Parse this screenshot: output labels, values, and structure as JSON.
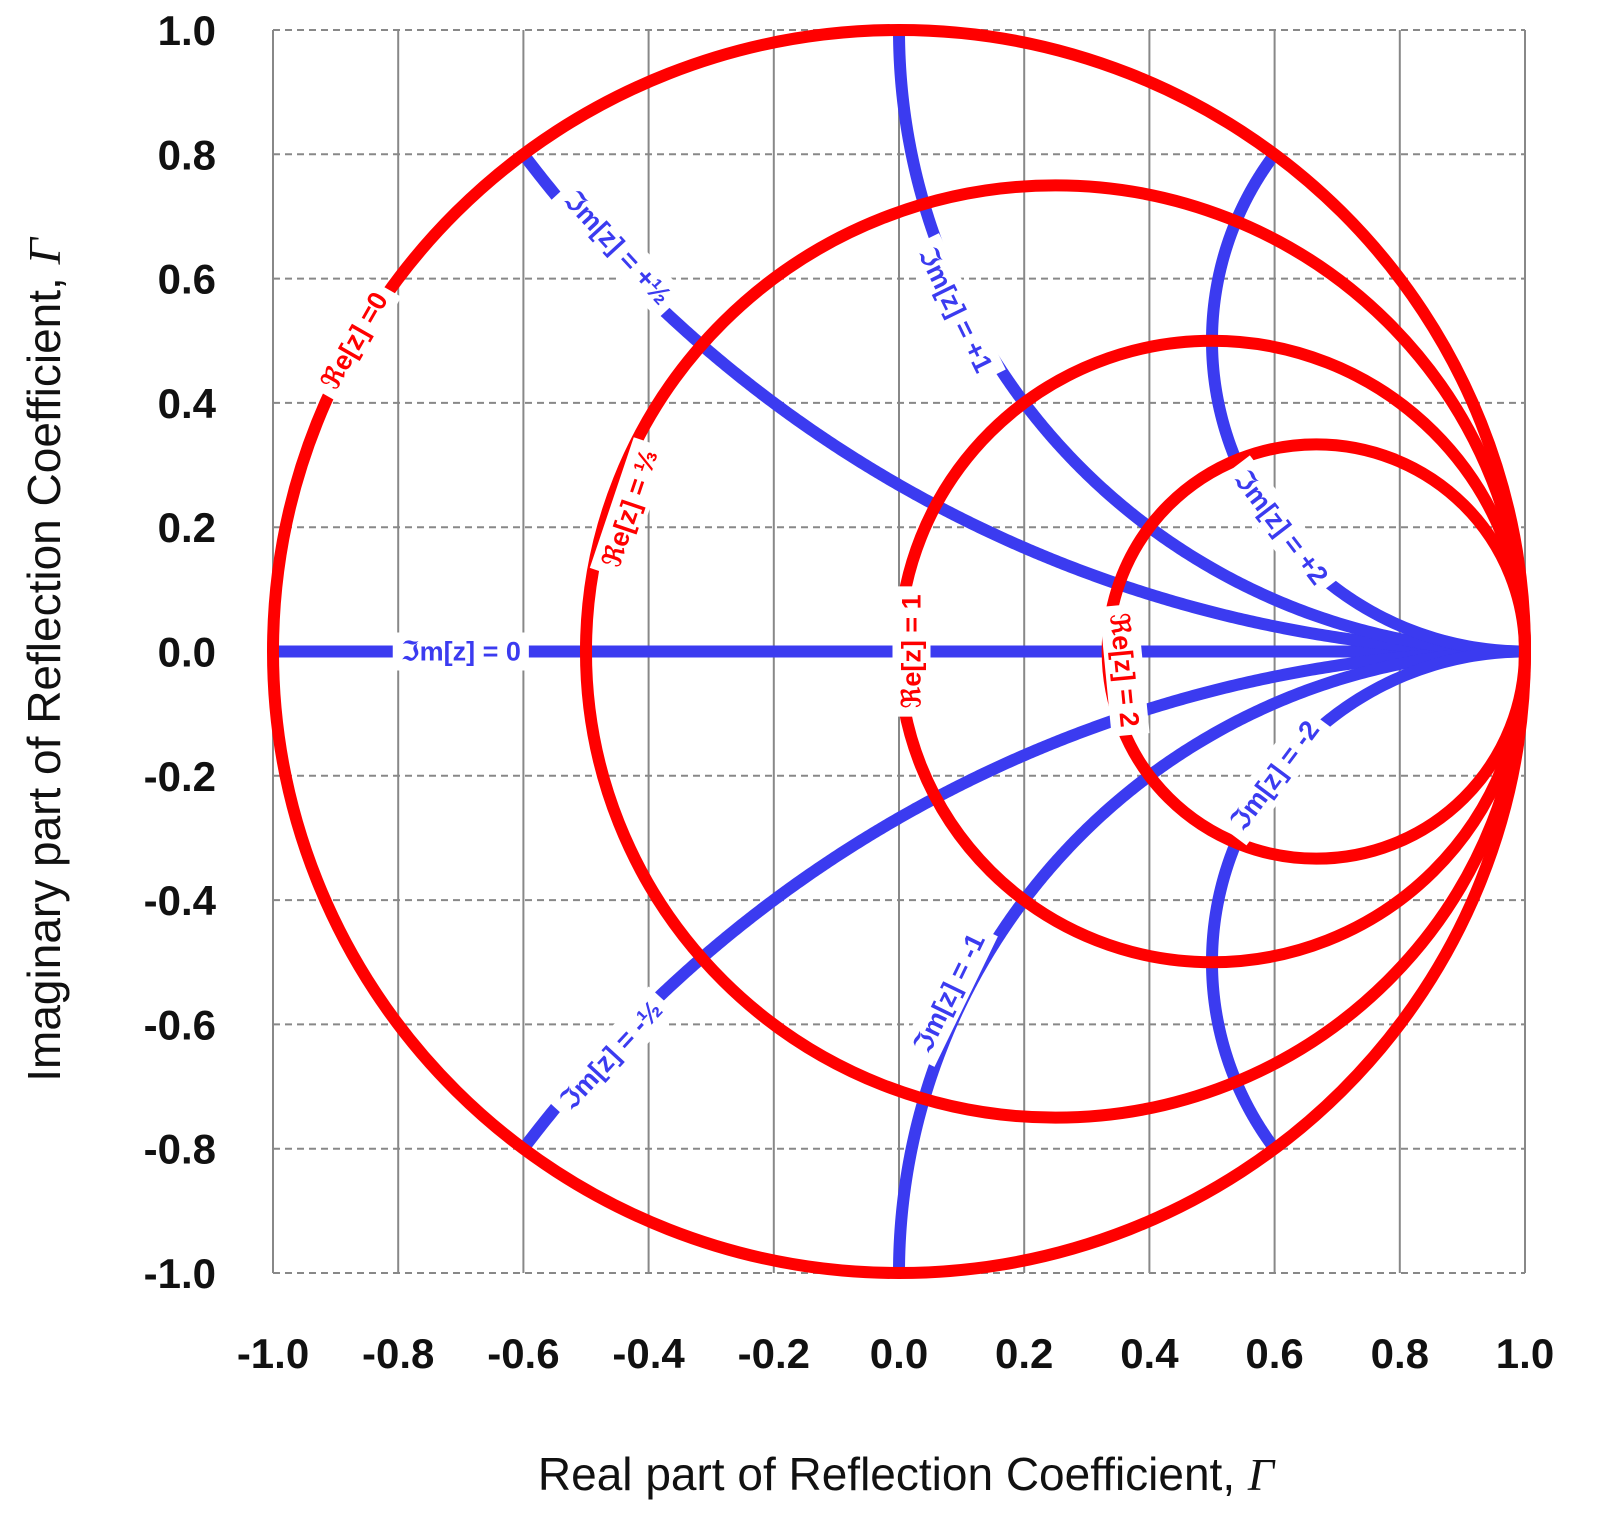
{
  "chart_data": {
    "type": "line",
    "title": "",
    "xlabel": "Real part of Reflection Coefficient, Γ",
    "ylabel": "Imaginary part of Reflection Coefficient, Γ",
    "axis_label_text": "part of Reflection Coefficient,",
    "xlabel_prefix": "Real",
    "ylabel_prefix": "Imaginary",
    "axis_symbol": "Γ",
    "xlim": [
      -1.0,
      1.0
    ],
    "ylim": [
      -1.0,
      1.0
    ],
    "xticks": [
      "-1.0",
      "-0.8",
      "-0.6",
      "-0.4",
      "-0.2",
      "0.0",
      "0.2",
      "0.4",
      "0.6",
      "0.8",
      "1.0"
    ],
    "yticks": [
      "-1.0",
      "-0.8",
      "-0.6",
      "-0.4",
      "-0.2",
      "0.0",
      "0.2",
      "0.4",
      "0.6",
      "0.8",
      "1.0"
    ],
    "grid": true,
    "colors": {
      "resistance": "#ff0000",
      "reactance": "#3b3bf0",
      "grid": "#888888"
    },
    "series": [
      {
        "name": "ℜe[z] =0",
        "kind": "constant-resistance",
        "r": 0,
        "label_anchor": [
          -0.87,
          0.5
        ]
      },
      {
        "name": "ℜe[z] = ⅓",
        "kind": "constant-resistance",
        "r": 0.3333,
        "label_anchor": [
          -0.43,
          0.23
        ]
      },
      {
        "name": "ℜe[z] = 1",
        "kind": "constant-resistance",
        "r": 1,
        "label_anchor": [
          0.02,
          0.0
        ]
      },
      {
        "name": "ℜe[z] = 2",
        "kind": "constant-resistance",
        "r": 2,
        "label_anchor": [
          0.36,
          -0.03
        ]
      },
      {
        "name": "ℑm[z] = 0",
        "kind": "constant-reactance",
        "x": 0,
        "label_anchor": [
          -0.7,
          0.0
        ]
      },
      {
        "name": "ℑm[z] = +½",
        "kind": "constant-reactance",
        "x": 0.5,
        "label_anchor": [
          -0.45,
          0.65
        ]
      },
      {
        "name": "ℑm[z] = -½",
        "kind": "constant-reactance",
        "x": -0.5,
        "label_anchor": [
          -0.46,
          -0.65
        ]
      },
      {
        "name": "ℑm[z] = +1",
        "kind": "constant-reactance",
        "x": 1,
        "label_anchor": [
          0.09,
          0.55
        ]
      },
      {
        "name": "ℑm[z] = -1",
        "kind": "constant-reactance",
        "x": -1,
        "label_anchor": [
          0.08,
          -0.55
        ]
      },
      {
        "name": "ℑm[z] = +2",
        "kind": "constant-reactance",
        "x": 2,
        "label_anchor": [
          0.61,
          0.2
        ]
      },
      {
        "name": "ℑm[z] = -2",
        "kind": "constant-reactance",
        "x": -2,
        "label_anchor": [
          0.6,
          -0.2
        ]
      }
    ]
  }
}
